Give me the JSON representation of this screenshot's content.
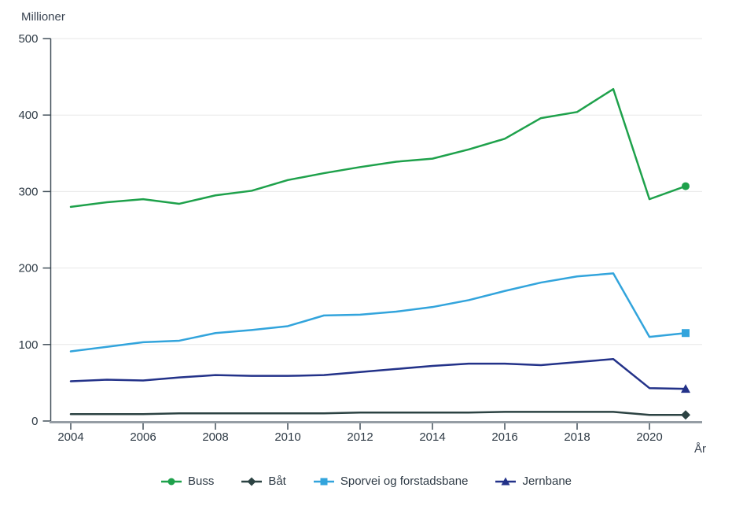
{
  "chart": {
    "y_unit_label": "Millioner"
  },
  "chart_data": {
    "type": "line",
    "title": "",
    "xlabel": "År",
    "ylabel": "Millioner",
    "x": [
      2004,
      2005,
      2006,
      2007,
      2008,
      2009,
      2010,
      2011,
      2012,
      2013,
      2014,
      2015,
      2016,
      2017,
      2018,
      2019,
      2020,
      2021
    ],
    "xticks": [
      2004,
      2006,
      2008,
      2010,
      2012,
      2014,
      2016,
      2018,
      2020
    ],
    "yticks": [
      0,
      100,
      200,
      300,
      400,
      500
    ],
    "ylim": [
      0,
      500
    ],
    "grid": "horizontal",
    "legend_position": "bottom",
    "colors": {
      "grid": "#e7e7e7",
      "y_axis": "#42505a",
      "x_axis": "#959da4",
      "tick": "#42505a",
      "text": "#2e3a45"
    },
    "series": [
      {
        "name": "Buss",
        "color": "#1ea14b",
        "marker": "circle",
        "values": [
          280,
          286,
          290,
          284,
          295,
          301,
          315,
          324,
          332,
          339,
          343,
          355,
          369,
          396,
          404,
          434,
          290,
          307
        ]
      },
      {
        "name": "Båt",
        "color": "#2c4343",
        "marker": "diamond",
        "values": [
          9,
          9,
          9,
          10,
          10,
          10,
          10,
          10,
          11,
          11,
          11,
          11,
          12,
          12,
          12,
          12,
          8,
          8
        ]
      },
      {
        "name": "Sporvei og forstadsbane",
        "color": "#32a4dc",
        "marker": "square",
        "values": [
          91,
          97,
          103,
          105,
          115,
          119,
          124,
          138,
          139,
          143,
          149,
          158,
          170,
          181,
          189,
          193,
          110,
          115
        ]
      },
      {
        "name": "Jernbane",
        "color": "#233289",
        "marker": "triangle",
        "values": [
          52,
          54,
          53,
          57,
          60,
          59,
          59,
          60,
          64,
          68,
          72,
          75,
          75,
          73,
          77,
          81,
          43,
          42
        ]
      }
    ]
  }
}
